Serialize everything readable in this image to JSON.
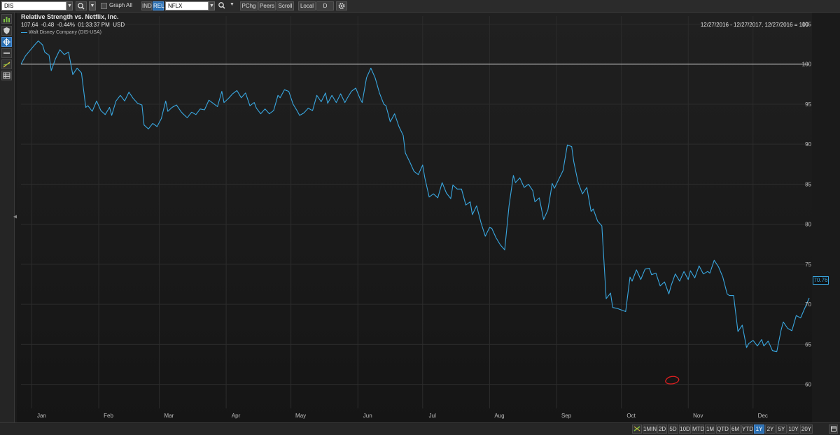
{
  "toolbar": {
    "symbol": "DIS",
    "graph_all": "Graph All",
    "ind": "IND",
    "rel": "REL",
    "compare_symbol": "NFLX",
    "pchg": "PChg",
    "peers": "Peers",
    "scroll": "Scroll",
    "local": "Local",
    "frequency": "D"
  },
  "header": {
    "title": "Relative Strength vs. Netflix, Inc.",
    "price": "107.64",
    "change": "-0.48",
    "change_pct": "-0.44%",
    "time": "01:33:37 PM",
    "currency": "USD",
    "date_range": "12/27/2016 - 12/27/2017, 12/27/2016 = 100"
  },
  "legend": {
    "series_label": "Walt Disney Company (DIS-USA)"
  },
  "last_value_label": "70.76",
  "timebar": [
    "1MIN",
    "2D",
    "5D",
    "10D",
    "MTD",
    "1M",
    "QTD",
    "6M",
    "YTD",
    "1Y",
    "2Y",
    "5Y",
    "10Y",
    "20Y"
  ],
  "timebar_active": "1Y",
  "chart_data": {
    "type": "line",
    "title": "Relative Strength vs. Netflix, Inc.",
    "ylim": [
      57,
      106
    ],
    "y_ticks": [
      60,
      65,
      70,
      75,
      80,
      85,
      90,
      95,
      100,
      105
    ],
    "reference_line": 100,
    "x_tick_labels": [
      "Jan",
      "Feb",
      "Mar",
      "Apr",
      "May",
      "Jun",
      "Jul",
      "Aug",
      "Sep",
      "Oct",
      "Nov",
      "Dec"
    ],
    "x_tick_dates": [
      "2017-01-01",
      "2017-02-01",
      "2017-03-01",
      "2017-04-01",
      "2017-05-01",
      "2017-06-01",
      "2017-07-01",
      "2017-08-01",
      "2017-09-01",
      "2017-10-01",
      "2017-11-01",
      "2017-12-01"
    ],
    "x_range": [
      "2016-12-27",
      "2017-12-27"
    ],
    "line_color": "#39a7e0",
    "grid": true,
    "series": [
      {
        "name": "Walt Disney Company (DIS-USA)",
        "points": [
          [
            "2016-12-27",
            100
          ],
          [
            "2016-12-29",
            101
          ],
          [
            "2017-01-02",
            102.3
          ],
          [
            "2017-01-04",
            102.9
          ],
          [
            "2017-01-06",
            102.4
          ],
          [
            "2017-01-07",
            101.5
          ],
          [
            "2017-01-09",
            101.1
          ],
          [
            "2017-01-10",
            99.2
          ],
          [
            "2017-01-12",
            100.7
          ],
          [
            "2017-01-14",
            101.8
          ],
          [
            "2017-01-16",
            101.2
          ],
          [
            "2017-01-18",
            101.5
          ],
          [
            "2017-01-20",
            98.7
          ],
          [
            "2017-01-22",
            99.5
          ],
          [
            "2017-01-24",
            98.9
          ],
          [
            "2017-01-26",
            94.6
          ],
          [
            "2017-01-27",
            94.8
          ],
          [
            "2017-01-29",
            94.1
          ],
          [
            "2017-01-31",
            95.4
          ],
          [
            "2017-02-02",
            94.2
          ],
          [
            "2017-02-04",
            93.7
          ],
          [
            "2017-02-06",
            94.6
          ],
          [
            "2017-02-07",
            93.6
          ],
          [
            "2017-02-09",
            95.4
          ],
          [
            "2017-02-11",
            96.1
          ],
          [
            "2017-02-13",
            95.4
          ],
          [
            "2017-02-15",
            96.5
          ],
          [
            "2017-02-17",
            95.7
          ],
          [
            "2017-02-19",
            95.1
          ],
          [
            "2017-02-21",
            94.9
          ],
          [
            "2017-02-22",
            92.4
          ],
          [
            "2017-02-24",
            91.9
          ],
          [
            "2017-02-26",
            92.6
          ],
          [
            "2017-02-28",
            92.2
          ],
          [
            "2017-03-02",
            93.2
          ],
          [
            "2017-03-04",
            95.4
          ],
          [
            "2017-03-05",
            94.1
          ],
          [
            "2017-03-07",
            94.6
          ],
          [
            "2017-03-09",
            94.9
          ],
          [
            "2017-03-11",
            94.1
          ],
          [
            "2017-03-12",
            93.8
          ],
          [
            "2017-03-14",
            93.3
          ],
          [
            "2017-03-16",
            94
          ],
          [
            "2017-03-18",
            93.7
          ],
          [
            "2017-03-20",
            94.4
          ],
          [
            "2017-03-22",
            94.3
          ],
          [
            "2017-03-24",
            95.5
          ],
          [
            "2017-03-26",
            95.1
          ],
          [
            "2017-03-28",
            94.7
          ],
          [
            "2017-03-30",
            96.6
          ],
          [
            "2017-03-31",
            95.2
          ],
          [
            "2017-04-02",
            95.7
          ],
          [
            "2017-04-04",
            96.3
          ],
          [
            "2017-04-06",
            96.7
          ],
          [
            "2017-04-08",
            95.8
          ],
          [
            "2017-04-10",
            96.4
          ],
          [
            "2017-04-12",
            94.8
          ],
          [
            "2017-04-14",
            95.2
          ],
          [
            "2017-04-15",
            94.5
          ],
          [
            "2017-04-17",
            93.8
          ],
          [
            "2017-04-19",
            94.4
          ],
          [
            "2017-04-21",
            93.8
          ],
          [
            "2017-04-23",
            94.2
          ],
          [
            "2017-04-25",
            96.1
          ],
          [
            "2017-04-26",
            95.8
          ],
          [
            "2017-04-28",
            96.8
          ],
          [
            "2017-04-30",
            96.6
          ],
          [
            "2017-05-02",
            95
          ],
          [
            "2017-05-04",
            94.1
          ],
          [
            "2017-05-05",
            93.6
          ],
          [
            "2017-05-07",
            93.9
          ],
          [
            "2017-05-09",
            94.5
          ],
          [
            "2017-05-11",
            94.2
          ],
          [
            "2017-05-13",
            96.1
          ],
          [
            "2017-05-15",
            95.3
          ],
          [
            "2017-05-17",
            96.4
          ],
          [
            "2017-05-18",
            95.1
          ],
          [
            "2017-05-20",
            96.1
          ],
          [
            "2017-05-22",
            95.2
          ],
          [
            "2017-05-24",
            96.3
          ],
          [
            "2017-05-26",
            95.2
          ],
          [
            "2017-05-27",
            95.7
          ],
          [
            "2017-05-29",
            96.6
          ],
          [
            "2017-05-31",
            97
          ],
          [
            "2017-06-02",
            95.7
          ],
          [
            "2017-06-03",
            95.2
          ],
          [
            "2017-06-05",
            98.3
          ],
          [
            "2017-06-07",
            99.5
          ],
          [
            "2017-06-09",
            98.3
          ],
          [
            "2017-06-11",
            96.4
          ],
          [
            "2017-06-13",
            95
          ],
          [
            "2017-06-14",
            94.8
          ],
          [
            "2017-06-16",
            92.8
          ],
          [
            "2017-06-18",
            93.8
          ],
          [
            "2017-06-20",
            92.2
          ],
          [
            "2017-06-22",
            91.1
          ],
          [
            "2017-06-23",
            88.9
          ],
          [
            "2017-06-25",
            87.8
          ],
          [
            "2017-06-27",
            86.6
          ],
          [
            "2017-06-29",
            86.2
          ],
          [
            "2017-07-01",
            87.4
          ],
          [
            "2017-07-02",
            85.8
          ],
          [
            "2017-07-04",
            83.4
          ],
          [
            "2017-07-06",
            83.8
          ],
          [
            "2017-07-08",
            83.3
          ],
          [
            "2017-07-10",
            85.2
          ],
          [
            "2017-07-12",
            83.9
          ],
          [
            "2017-07-14",
            83.2
          ],
          [
            "2017-07-15",
            84.9
          ],
          [
            "2017-07-17",
            84.4
          ],
          [
            "2017-07-19",
            84.4
          ],
          [
            "2017-07-21",
            82.4
          ],
          [
            "2017-07-23",
            82.8
          ],
          [
            "2017-07-24",
            81.2
          ],
          [
            "2017-07-26",
            82.3
          ],
          [
            "2017-07-28",
            80.2
          ],
          [
            "2017-07-30",
            78.5
          ],
          [
            "2017-08-01",
            79.6
          ],
          [
            "2017-08-02",
            79.5
          ],
          [
            "2017-08-04",
            78.3
          ],
          [
            "2017-08-06",
            77.4
          ],
          [
            "2017-08-08",
            76.8
          ],
          [
            "2017-08-10",
            82.3
          ],
          [
            "2017-08-12",
            86.1
          ],
          [
            "2017-08-13",
            85.2
          ],
          [
            "2017-08-15",
            85.8
          ],
          [
            "2017-08-17",
            84.6
          ],
          [
            "2017-08-19",
            85
          ],
          [
            "2017-08-21",
            84.2
          ],
          [
            "2017-08-22",
            82.8
          ],
          [
            "2017-08-24",
            83.3
          ],
          [
            "2017-08-26",
            80.6
          ],
          [
            "2017-08-28",
            81.8
          ],
          [
            "2017-08-30",
            85.1
          ],
          [
            "2017-08-31",
            84.5
          ],
          [
            "2017-09-02",
            85.6
          ],
          [
            "2017-09-04",
            86.7
          ],
          [
            "2017-09-06",
            89.9
          ],
          [
            "2017-09-08",
            89.7
          ],
          [
            "2017-09-09",
            87.8
          ],
          [
            "2017-09-11",
            85.2
          ],
          [
            "2017-09-13",
            83.8
          ],
          [
            "2017-09-15",
            84.6
          ],
          [
            "2017-09-17",
            81.6
          ],
          [
            "2017-09-18",
            81.9
          ],
          [
            "2017-09-20",
            80.4
          ],
          [
            "2017-09-22",
            79.8
          ],
          [
            "2017-09-24",
            70.7
          ],
          [
            "2017-09-26",
            71.4
          ],
          [
            "2017-09-27",
            69.6
          ],
          [
            "2017-09-29",
            69.5
          ],
          [
            "2017-10-01",
            69.3
          ],
          [
            "2017-10-03",
            69.1
          ],
          [
            "2017-10-05",
            73.4
          ],
          [
            "2017-10-06",
            72.9
          ],
          [
            "2017-10-08",
            74.3
          ],
          [
            "2017-10-10",
            73.1
          ],
          [
            "2017-10-12",
            74.4
          ],
          [
            "2017-10-14",
            74.5
          ],
          [
            "2017-10-15",
            73.7
          ],
          [
            "2017-10-17",
            73.9
          ],
          [
            "2017-10-19",
            72.3
          ],
          [
            "2017-10-21",
            72.8
          ],
          [
            "2017-10-23",
            71.3
          ],
          [
            "2017-10-24",
            72.3
          ],
          [
            "2017-10-26",
            73.8
          ],
          [
            "2017-10-28",
            72.9
          ],
          [
            "2017-10-30",
            74.1
          ],
          [
            "2017-11-01",
            73.1
          ],
          [
            "2017-11-02",
            74.2
          ],
          [
            "2017-11-04",
            73.3
          ],
          [
            "2017-11-06",
            74.8
          ],
          [
            "2017-11-08",
            73.8
          ],
          [
            "2017-11-10",
            74.1
          ],
          [
            "2017-11-11",
            73.9
          ],
          [
            "2017-11-13",
            75.5
          ],
          [
            "2017-11-15",
            74.7
          ],
          [
            "2017-11-17",
            73.4
          ],
          [
            "2017-11-19",
            71.3
          ],
          [
            "2017-11-20",
            71.1
          ],
          [
            "2017-11-22",
            71.1
          ],
          [
            "2017-11-24",
            66.6
          ],
          [
            "2017-11-26",
            67.4
          ],
          [
            "2017-11-28",
            64.6
          ],
          [
            "2017-11-29",
            65.1
          ],
          [
            "2017-12-01",
            65.5
          ],
          [
            "2017-12-03",
            64.8
          ],
          [
            "2017-12-05",
            65.6
          ],
          [
            "2017-12-06",
            64.8
          ],
          [
            "2017-12-08",
            65.4
          ],
          [
            "2017-12-10",
            64.2
          ],
          [
            "2017-12-12",
            64.1
          ],
          [
            "2017-12-14",
            66.8
          ],
          [
            "2017-12-15",
            67.8
          ],
          [
            "2017-12-17",
            67
          ],
          [
            "2017-12-19",
            66.7
          ],
          [
            "2017-12-21",
            68.6
          ],
          [
            "2017-12-23",
            68.3
          ],
          [
            "2017-12-27",
            70.8
          ]
        ]
      }
    ]
  }
}
